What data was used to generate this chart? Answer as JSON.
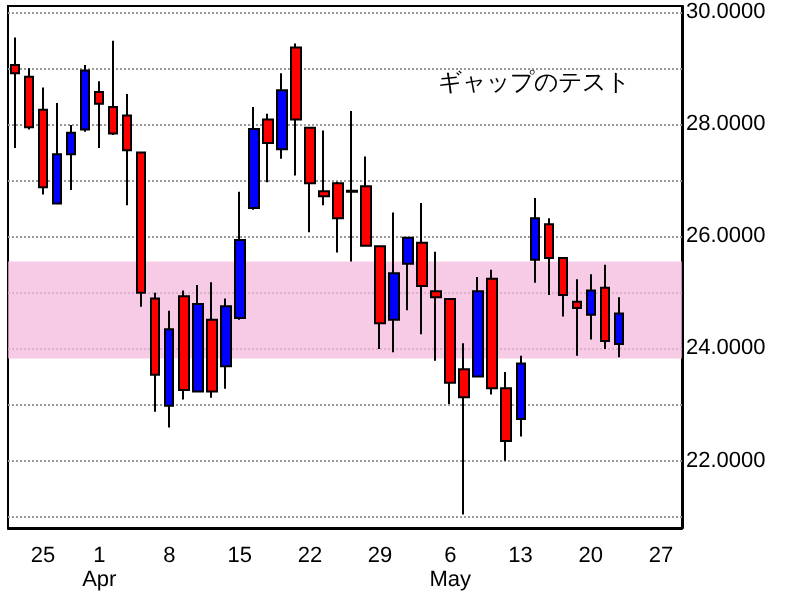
{
  "chart_data": {
    "type": "candlestick",
    "title": "ギャップのテスト",
    "categories": [
      null,
      null,
      "25",
      null,
      null,
      null,
      "1\nApr",
      null,
      null,
      null,
      null,
      "8",
      null,
      null,
      null,
      null,
      "15",
      null,
      null,
      null,
      null,
      "22",
      null,
      null,
      null,
      null,
      "29",
      null,
      null,
      null,
      null,
      "6\nMay",
      null,
      null,
      null,
      null,
      "13",
      null,
      null,
      null,
      null,
      "20",
      null,
      null,
      null,
      null,
      "27",
      null
    ],
    "ohlc": [
      [
        29.05,
        29.54,
        27.57,
        28.9
      ],
      [
        28.84,
        28.99,
        27.9,
        27.94
      ],
      [
        28.25,
        28.65,
        26.74,
        26.87
      ],
      [
        26.58,
        28.37,
        26.58,
        27.46
      ],
      [
        27.46,
        27.98,
        26.82,
        27.84
      ],
      [
        27.9,
        29.05,
        27.86,
        28.95
      ],
      [
        28.57,
        28.76,
        27.57,
        28.36
      ],
      [
        28.3,
        29.48,
        27.8,
        27.83
      ],
      [
        28.15,
        28.53,
        26.55,
        27.53
      ],
      [
        27.49,
        27.49,
        24.74,
        24.99
      ],
      [
        24.89,
        24.99,
        22.87,
        23.53
      ],
      [
        22.98,
        24.67,
        22.59,
        24.34
      ],
      [
        24.93,
        25.03,
        23.09,
        23.26
      ],
      [
        23.23,
        25.13,
        23.23,
        24.79
      ],
      [
        24.51,
        25.18,
        23.12,
        23.23
      ],
      [
        23.68,
        24.89,
        23.28,
        24.75
      ],
      [
        24.54,
        26.79,
        24.51,
        25.93
      ],
      [
        26.5,
        28.3,
        26.47,
        27.91
      ],
      [
        28.08,
        28.18,
        26.96,
        27.66
      ],
      [
        27.55,
        28.9,
        27.38,
        28.6
      ],
      [
        29.36,
        29.43,
        27.08,
        28.08
      ],
      [
        27.93,
        27.93,
        26.07,
        26.94
      ],
      [
        26.8,
        27.88,
        26.55,
        26.71
      ],
      [
        26.94,
        26.97,
        25.71,
        26.32
      ],
      [
        26.81,
        28.23,
        25.55,
        26.79
      ],
      [
        26.89,
        27.42,
        25.83,
        25.83
      ],
      [
        25.82,
        25.82,
        23.99,
        24.45
      ],
      [
        24.51,
        26.42,
        23.93,
        25.34
      ],
      [
        25.51,
        25.97,
        24.68,
        25.97
      ],
      [
        25.88,
        26.59,
        24.25,
        25.11
      ],
      [
        25.02,
        25.72,
        23.78,
        24.91
      ],
      [
        24.88,
        24.88,
        23.01,
        23.39
      ],
      [
        23.63,
        24.09,
        21.04,
        23.13
      ],
      [
        23.5,
        25.27,
        23.5,
        25.02
      ],
      [
        25.24,
        25.4,
        23.18,
        23.29
      ],
      [
        23.29,
        23.58,
        22.0,
        22.35
      ],
      [
        22.74,
        23.87,
        22.43,
        23.73
      ],
      [
        25.58,
        26.68,
        25.17,
        26.32
      ],
      [
        26.21,
        26.32,
        24.95,
        25.61
      ],
      [
        25.61,
        25.61,
        24.57,
        24.95
      ],
      [
        24.83,
        25.23,
        23.87,
        24.72
      ],
      [
        24.6,
        25.32,
        24.16,
        25.03
      ],
      [
        25.08,
        25.49,
        23.99,
        24.13
      ],
      [
        24.08,
        24.91,
        23.84,
        24.62
      ],
      null,
      null,
      null,
      null
    ],
    "colors": [
      "#ff0000",
      "#ff0000",
      "#ff0000",
      "#0000ff",
      "#0000ff",
      "#0000ff",
      "#ff0000",
      "#ff0000",
      "#ff0000",
      "#ff0000",
      "#ff0000",
      "#0000ff",
      "#ff0000",
      "#0000ff",
      "#ff0000",
      "#0000ff",
      "#0000ff",
      "#0000ff",
      "#ff0000",
      "#0000ff",
      "#ff0000",
      "#ff0000",
      "#ff0000",
      "#ff0000",
      "#ff0000",
      "#ff0000",
      "#ff0000",
      "#0000ff",
      "#0000ff",
      "#ff0000",
      "#ff0000",
      "#ff0000",
      "#ff0000",
      "#0000ff",
      "#ff0000",
      "#ff0000",
      "#0000ff",
      "#0000ff",
      "#ff0000",
      "#ff0000",
      "#ff0000",
      "#0000ff",
      "#ff0000",
      "#0000ff",
      null,
      null,
      null,
      null
    ],
    "ylim": [
      20.8,
      30.1
    ],
    "yticks": [
      {
        "value": 21,
        "label": null
      },
      {
        "value": 22,
        "label": "22.0000"
      },
      {
        "value": 23,
        "label": null
      },
      {
        "value": 24,
        "label": "24.0000"
      },
      {
        "value": 25,
        "label": null
      },
      {
        "value": 26,
        "label": "26.0000"
      },
      {
        "value": 27,
        "label": null
      },
      {
        "value": 28,
        "label": "28.0000"
      },
      {
        "value": 29,
        "label": null
      },
      {
        "value": 30,
        "label": "30.0000"
      }
    ],
    "bands": [
      {
        "axis": "y",
        "from": 23.82,
        "to": 25.55,
        "color": "#f4b8dc"
      }
    ],
    "grid": "y"
  }
}
